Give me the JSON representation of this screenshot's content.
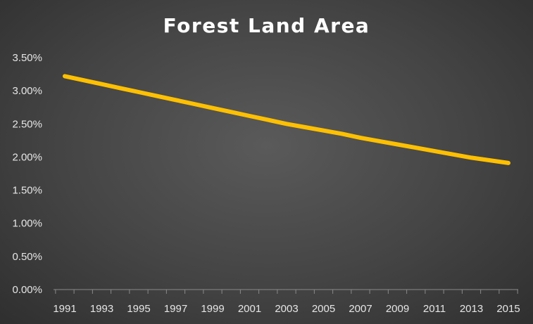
{
  "chart_data": {
    "type": "line",
    "title": "Forest Land Area",
    "xlabel": "",
    "ylabel": "",
    "x": [
      1991,
      1992,
      1993,
      1994,
      1995,
      1996,
      1997,
      1998,
      1999,
      2000,
      2001,
      2002,
      2003,
      2004,
      2005,
      2006,
      2007,
      2008,
      2009,
      2010,
      2011,
      2012,
      2013,
      2014,
      2015
    ],
    "x_tick_labels": [
      "1991",
      "1993",
      "1995",
      "1997",
      "1999",
      "2001",
      "2003",
      "2005",
      "2007",
      "2009",
      "2011",
      "2013",
      "2015"
    ],
    "series": [
      {
        "name": "",
        "color": "#ffc000",
        "values": [
          3.22,
          3.16,
          3.1,
          3.04,
          2.98,
          2.92,
          2.86,
          2.8,
          2.74,
          2.68,
          2.62,
          2.56,
          2.5,
          2.45,
          2.4,
          2.35,
          2.29,
          2.24,
          2.19,
          2.14,
          2.09,
          2.04,
          1.99,
          1.95,
          1.91
        ]
      }
    ],
    "y_ticks": [
      0,
      0.5,
      1.0,
      1.5,
      2.0,
      2.5,
      3.0,
      3.5
    ],
    "y_tick_labels": [
      "0.00%",
      "0.50%",
      "1.00%",
      "1.50%",
      "2.00%",
      "2.50%",
      "3.00%",
      "3.50%"
    ],
    "ylim": [
      0,
      3.5
    ],
    "xlim": [
      1991,
      2015
    ],
    "grid": false,
    "legend": "none"
  }
}
